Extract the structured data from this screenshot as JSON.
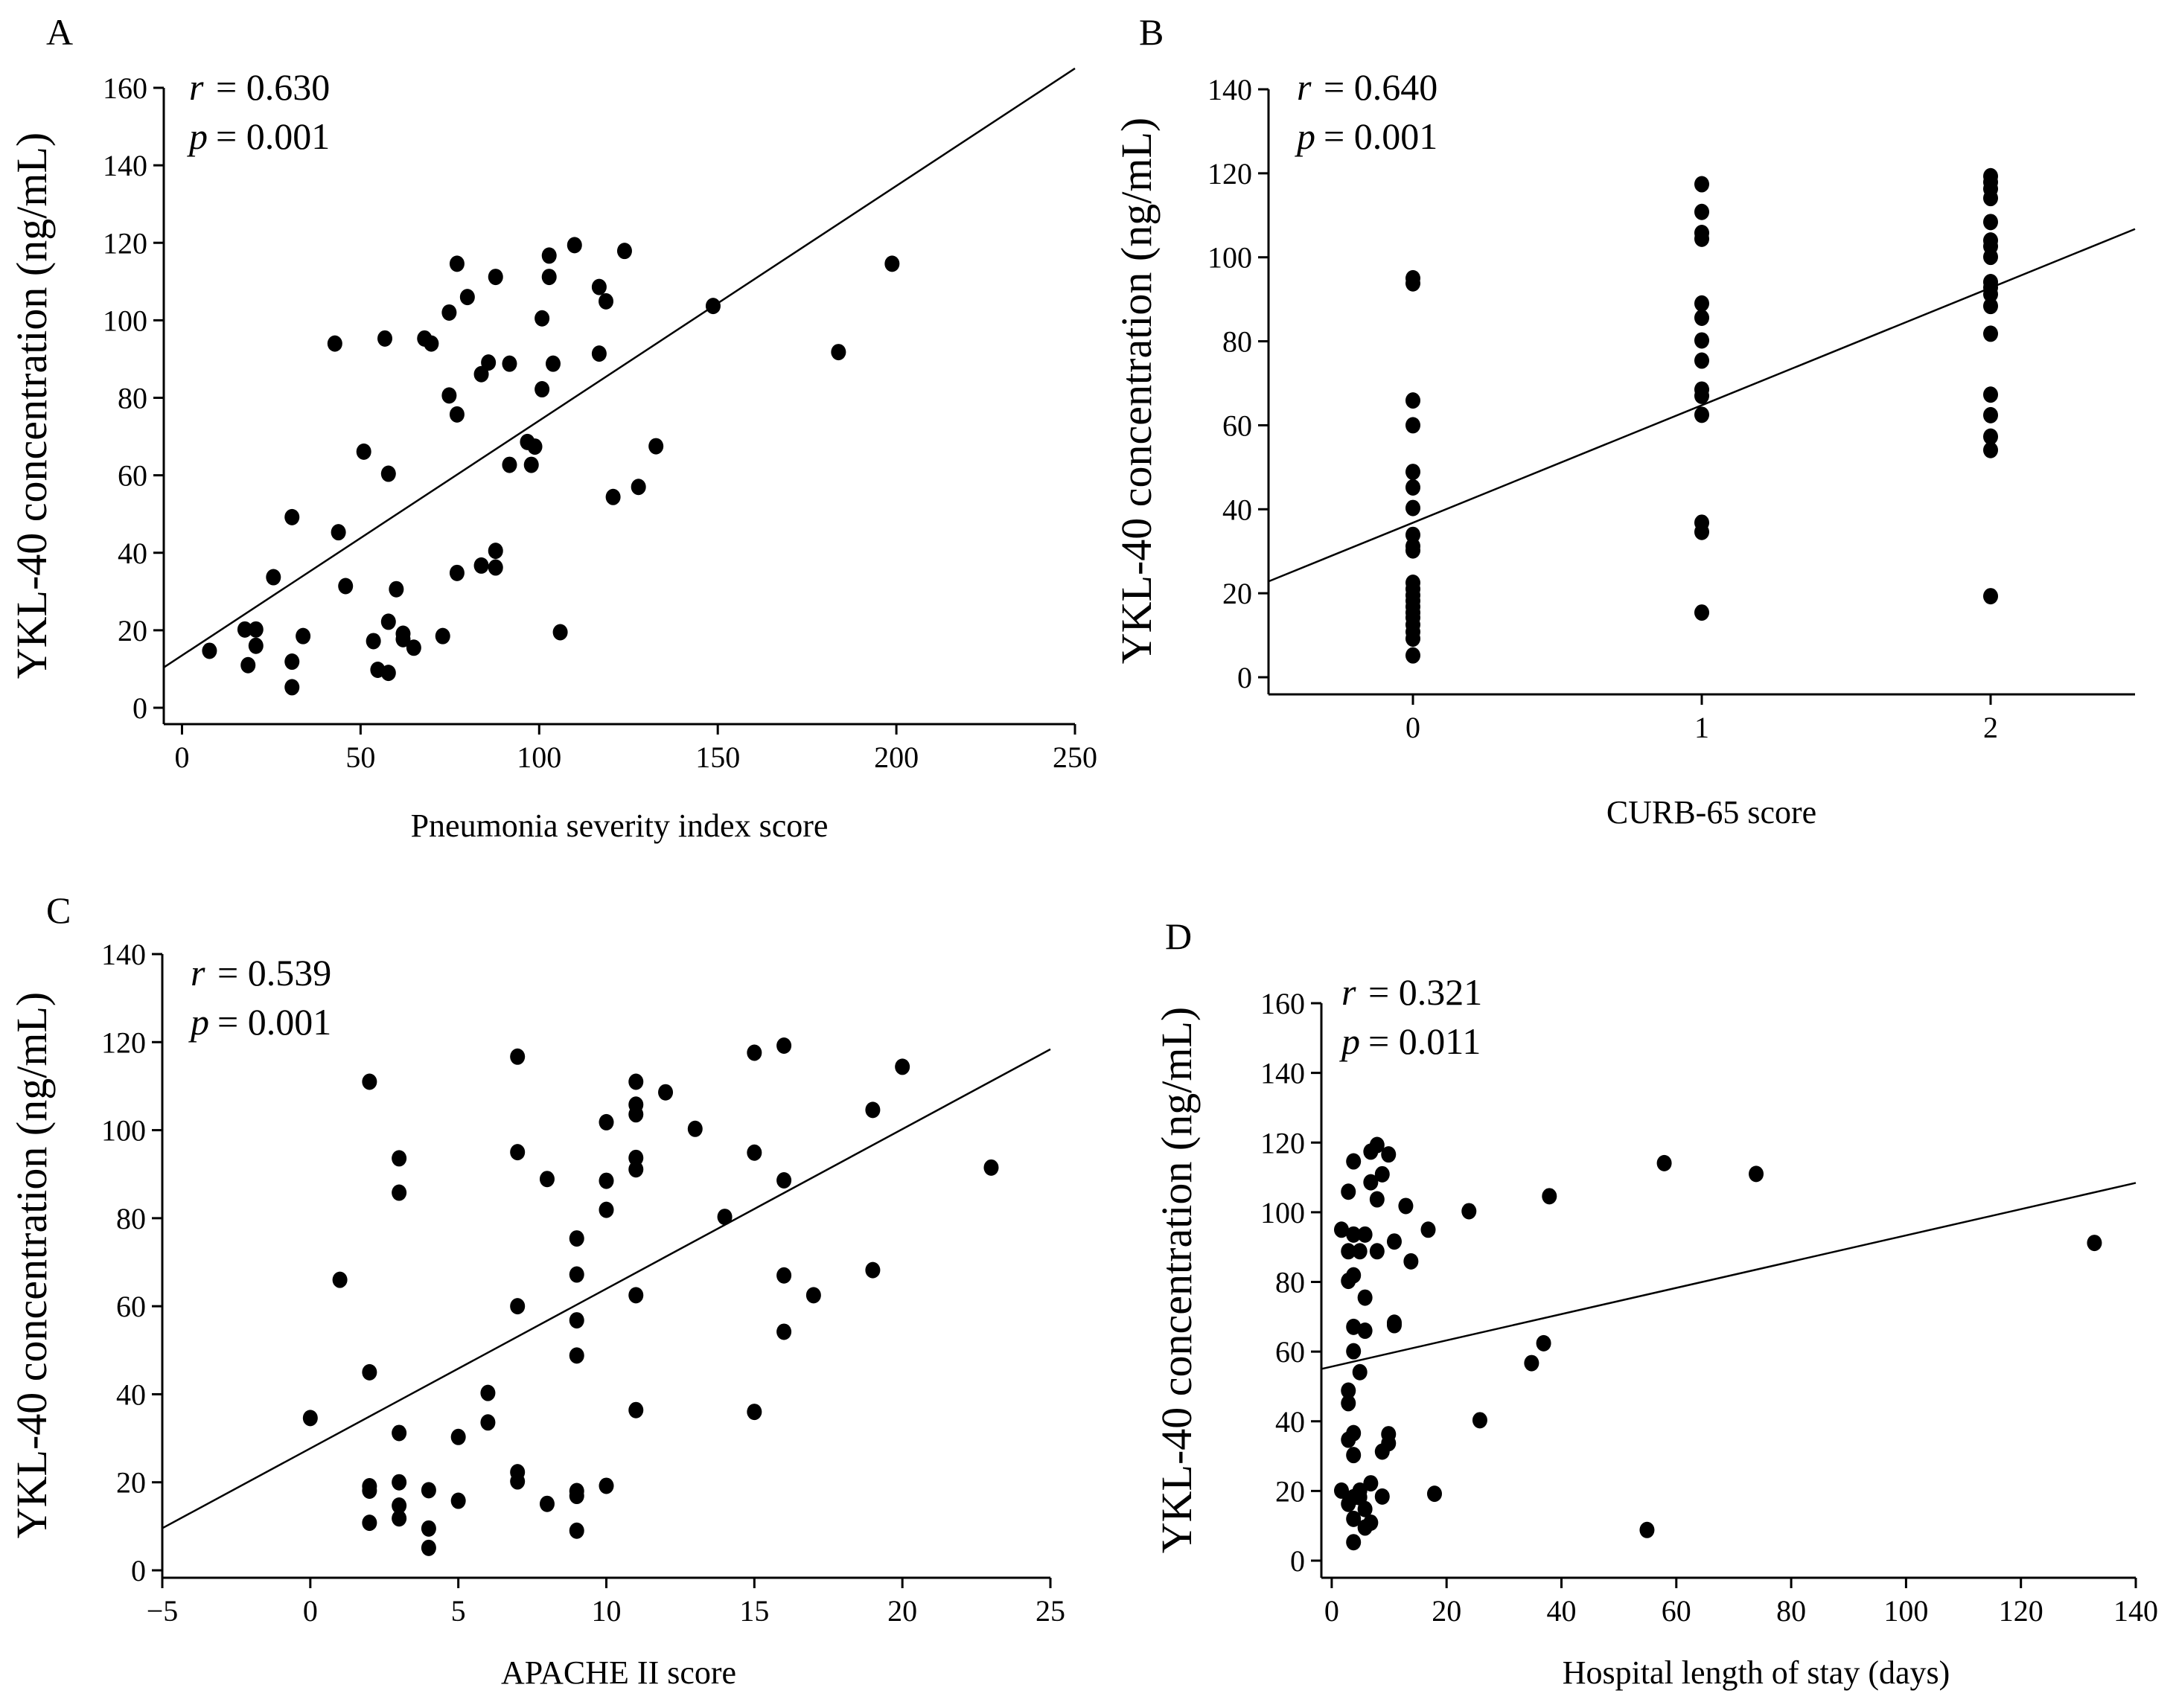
{
  "chart_data": [
    {
      "panel_label": "A",
      "type": "scatter",
      "title": "",
      "xlabel": "Pneumonia severity index score",
      "ylabel": "YKL-40 concentration (ng/mL)",
      "xlim": [
        -5.1,
        250
      ],
      "ylim": [
        0,
        160
      ],
      "xticks": [
        0,
        50,
        100,
        150,
        200,
        250
      ],
      "xtick_labels": [
        "0",
        "50",
        "100",
        "150",
        "200",
        "250"
      ],
      "yticks": [
        0,
        20,
        40,
        60,
        80,
        100,
        120,
        140,
        160
      ],
      "ytick_labels": [
        "0",
        "20",
        "40",
        "60",
        "80",
        "100",
        "120",
        "140",
        "160"
      ],
      "grid": false,
      "stats": {
        "r_symbol": "r",
        "r_text": "= 0.630",
        "p_symbol": "p",
        "p_text": "= 0.001"
      },
      "regression": {
        "slope": 0.606,
        "intercept": 13.5
      },
      "points": [
        [
          7.7,
          14.7
        ],
        [
          17.6,
          20.2
        ],
        [
          20.7,
          20.2
        ],
        [
          20.7,
          16
        ],
        [
          18.5,
          11
        ],
        [
          30.8,
          11.9
        ],
        [
          30.8,
          5.3
        ],
        [
          33.9,
          18.5
        ],
        [
          25.6,
          33.7
        ],
        [
          30.8,
          49.2
        ],
        [
          43.8,
          45.3
        ],
        [
          42.8,
          94
        ],
        [
          45.8,
          31.4
        ],
        [
          50.9,
          66.1
        ],
        [
          53.6,
          17.2
        ],
        [
          54.8,
          9.8
        ],
        [
          57.8,
          9
        ],
        [
          57.8,
          22.2
        ],
        [
          57.8,
          60.4
        ],
        [
          56.8,
          95.3
        ],
        [
          60,
          30.6
        ],
        [
          61.9,
          19.1
        ],
        [
          61.9,
          17.7
        ],
        [
          64.9,
          15.5
        ],
        [
          67.9,
          95.3
        ],
        [
          69.8,
          94
        ],
        [
          73,
          18.5
        ],
        [
          74.8,
          102
        ],
        [
          74.8,
          80.6
        ],
        [
          77,
          114.6
        ],
        [
          77,
          75.7
        ],
        [
          77,
          34.8
        ],
        [
          79.9,
          106
        ],
        [
          83.8,
          86.1
        ],
        [
          83.8,
          36.7
        ],
        [
          85.8,
          89.1
        ],
        [
          87.8,
          111.2
        ],
        [
          87.8,
          40.5
        ],
        [
          87.8,
          36.2
        ],
        [
          91.7,
          88.8
        ],
        [
          91.7,
          62.7
        ],
        [
          96.7,
          68.6
        ],
        [
          97.8,
          62.7
        ],
        [
          98.8,
          67.4
        ],
        [
          100.8,
          100.5
        ],
        [
          100.8,
          82.2
        ],
        [
          102.8,
          116.7
        ],
        [
          102.8,
          111.2
        ],
        [
          103.9,
          88.8
        ],
        [
          105.9,
          19.5
        ],
        [
          109.9,
          119.4
        ],
        [
          116.8,
          108.6
        ],
        [
          116.8,
          91.4
        ],
        [
          118.7,
          104.9
        ],
        [
          123.9,
          117.9
        ],
        [
          120.7,
          54.4
        ],
        [
          127.8,
          57
        ],
        [
          132.7,
          67.5
        ],
        [
          148.7,
          103.7
        ],
        [
          183.8,
          91.8
        ],
        [
          198.8,
          114.6
        ]
      ]
    },
    {
      "panel_label": "B",
      "type": "scatter",
      "title": "",
      "xlabel": "CURB-65 score",
      "ylabel": "YKL-40 concentration (ng/mL)",
      "xlim": [
        -0.5,
        2.5
      ],
      "ylim": [
        0,
        140
      ],
      "xticks": [
        0,
        1,
        2
      ],
      "xtick_labels": [
        "0",
        "1",
        "2"
      ],
      "yticks": [
        0,
        20,
        40,
        60,
        80,
        100,
        120,
        140
      ],
      "ytick_labels": [
        "0",
        "20",
        "40",
        "60",
        "80",
        "100",
        "120",
        "140"
      ],
      "grid": false,
      "stats": {
        "r_symbol": "r",
        "r_text": "= 0.640",
        "p_symbol": "p",
        "p_text": "= 0.001"
      },
      "regression": {
        "slope": 27.97,
        "intercept": 36.8
      },
      "points": [
        [
          0,
          95
        ],
        [
          0,
          93.8
        ],
        [
          0,
          65.9
        ],
        [
          0,
          60
        ],
        [
          0,
          48.9
        ],
        [
          0,
          45.2
        ],
        [
          0,
          40.3
        ],
        [
          0,
          33.9
        ],
        [
          0,
          31.2
        ],
        [
          0,
          30.2
        ],
        [
          0,
          22.5
        ],
        [
          0,
          21
        ],
        [
          0,
          19.5
        ],
        [
          0,
          18.2
        ],
        [
          0,
          16.8
        ],
        [
          0,
          15.4
        ],
        [
          0,
          14.2
        ],
        [
          0,
          12.5
        ],
        [
          0,
          10.8
        ],
        [
          0,
          9.2
        ],
        [
          0,
          5.2
        ],
        [
          1,
          117.4
        ],
        [
          1,
          110.8
        ],
        [
          1,
          105.8
        ],
        [
          1,
          104.4
        ],
        [
          1,
          89
        ],
        [
          1,
          85.6
        ],
        [
          1,
          80.2
        ],
        [
          1,
          75.4
        ],
        [
          1,
          68.5
        ],
        [
          1,
          67
        ],
        [
          1,
          62.5
        ],
        [
          1,
          36.8
        ],
        [
          1,
          34.6
        ],
        [
          1,
          15.4
        ],
        [
          2,
          119.3
        ],
        [
          2,
          117.9
        ],
        [
          2,
          116.3
        ],
        [
          2,
          114.1
        ],
        [
          2,
          108.4
        ],
        [
          2,
          104
        ],
        [
          2,
          102.6
        ],
        [
          2,
          100.1
        ],
        [
          2,
          94.1
        ],
        [
          2,
          92.8
        ],
        [
          2,
          91.2
        ],
        [
          2,
          88.4
        ],
        [
          2,
          81.8
        ],
        [
          2,
          67.3
        ],
        [
          2,
          62.4
        ],
        [
          2,
          57.3
        ],
        [
          2,
          54.1
        ],
        [
          2,
          19.3
        ]
      ]
    },
    {
      "panel_label": "C",
      "type": "scatter",
      "title": "",
      "xlabel": "APACHE II score",
      "ylabel": "YKL-40 concentration (ng/mL)",
      "xlim": [
        -5,
        25
      ],
      "ylim": [
        0,
        140
      ],
      "xticks": [
        -5,
        0,
        5,
        10,
        15,
        20,
        25
      ],
      "xtick_labels": [
        "−5",
        "0",
        "5",
        "10",
        "15",
        "20",
        "25"
      ],
      "yticks": [
        0,
        20,
        40,
        60,
        80,
        100,
        120,
        140
      ],
      "ytick_labels": [
        "0",
        "20",
        "40",
        "60",
        "80",
        "100",
        "120",
        "140"
      ],
      "grid": false,
      "stats": {
        "r_symbol": "r",
        "r_text": "= 0.539",
        "p_symbol": "p",
        "p_text": "= 0.001"
      },
      "regression": {
        "slope": 3.627,
        "intercept": 27.7
      },
      "points": [
        [
          0,
          34.6
        ],
        [
          1,
          66
        ],
        [
          2,
          111
        ],
        [
          2,
          45
        ],
        [
          2,
          19.1
        ],
        [
          2,
          18.1
        ],
        [
          2,
          10.8
        ],
        [
          3,
          93.6
        ],
        [
          3,
          85.8
        ],
        [
          3,
          31.2
        ],
        [
          3,
          20
        ],
        [
          3,
          14.7
        ],
        [
          3,
          11.8
        ],
        [
          4,
          18.2
        ],
        [
          4,
          9.5
        ],
        [
          4,
          5.1
        ],
        [
          5,
          30.3
        ],
        [
          5,
          15.8
        ],
        [
          6,
          40.3
        ],
        [
          6,
          33.6
        ],
        [
          7,
          116.7
        ],
        [
          7,
          95
        ],
        [
          7,
          60
        ],
        [
          7,
          22.3
        ],
        [
          7,
          20.2
        ],
        [
          8,
          88.9
        ],
        [
          8,
          15.1
        ],
        [
          9,
          75.4
        ],
        [
          9,
          67.2
        ],
        [
          9,
          56.8
        ],
        [
          9,
          48.8
        ],
        [
          9,
          18
        ],
        [
          9,
          16.9
        ],
        [
          9,
          9
        ],
        [
          10,
          101.8
        ],
        [
          10,
          88.5
        ],
        [
          10,
          81.9
        ],
        [
          10,
          19.2
        ],
        [
          11,
          111
        ],
        [
          11,
          105.8
        ],
        [
          11,
          103.6
        ],
        [
          11,
          93.7
        ],
        [
          11,
          91.1
        ],
        [
          11,
          62.5
        ],
        [
          11,
          36.4
        ],
        [
          12,
          108.6
        ],
        [
          13,
          100.3
        ],
        [
          14,
          80.3
        ],
        [
          15,
          117.6
        ],
        [
          15,
          94.9
        ],
        [
          15,
          36
        ],
        [
          16,
          119.2
        ],
        [
          16,
          88.6
        ],
        [
          16,
          67
        ],
        [
          16,
          54.2
        ],
        [
          17,
          62.5
        ],
        [
          19,
          104.6
        ],
        [
          19,
          68.2
        ],
        [
          20,
          114.4
        ],
        [
          23,
          91.5
        ]
      ]
    },
    {
      "panel_label": "D",
      "type": "scatter",
      "title": "",
      "xlabel": "Hospital length of stay (days)",
      "ylabel": "YKL-40 concentration (ng/mL)",
      "xlim": [
        -1.8,
        140
      ],
      "ylim": [
        0,
        160
      ],
      "xticks": [
        0,
        20,
        40,
        60,
        80,
        100,
        120,
        140
      ],
      "xtick_labels": [
        "0",
        "20",
        "40",
        "60",
        "80",
        "100",
        "120",
        "140"
      ],
      "yticks": [
        0,
        20,
        40,
        60,
        80,
        100,
        120,
        140,
        160
      ],
      "ytick_labels": [
        "0",
        "20",
        "40",
        "60",
        "80",
        "100",
        "120",
        "140",
        "160"
      ],
      "grid": false,
      "stats": {
        "r_symbol": "r",
        "r_text": "= 0.321",
        "p_symbol": "p",
        "p_text": "= 0.011"
      },
      "regression": {
        "slope": 0.3766,
        "intercept": 55.7
      },
      "points": [
        [
          1.7,
          95
        ],
        [
          2.9,
          105.9
        ],
        [
          2.9,
          88.8
        ],
        [
          2.9,
          80.3
        ],
        [
          3.8,
          114.6
        ],
        [
          3.8,
          93.6
        ],
        [
          3.8,
          81.9
        ],
        [
          5.8,
          93.6
        ],
        [
          4.9,
          88.8
        ],
        [
          7.9,
          88.8
        ],
        [
          5.8,
          75.5
        ],
        [
          3.8,
          67.1
        ],
        [
          5.8,
          66
        ],
        [
          3.8,
          60.1
        ],
        [
          4.9,
          54.1
        ],
        [
          2.9,
          48.8
        ],
        [
          2.9,
          45.2
        ],
        [
          2.9,
          34.7
        ],
        [
          3.8,
          36.6
        ],
        [
          3.8,
          30.3
        ],
        [
          1.7,
          20.1
        ],
        [
          2.9,
          16.3
        ],
        [
          3.8,
          18.2
        ],
        [
          4.9,
          20.1
        ],
        [
          4.9,
          18.2
        ],
        [
          3.8,
          12
        ],
        [
          3.8,
          5.3
        ],
        [
          5.8,
          14.8
        ],
        [
          5.8,
          9.5
        ],
        [
          6.8,
          10.9
        ],
        [
          6.8,
          22.2
        ],
        [
          8.8,
          18.4
        ],
        [
          8.8,
          31.3
        ],
        [
          9.9,
          33.7
        ],
        [
          9.9,
          36.3
        ],
        [
          6.8,
          117.4
        ],
        [
          7.9,
          119.3
        ],
        [
          9.9,
          116.6
        ],
        [
          6.8,
          108.6
        ],
        [
          8.8,
          110.9
        ],
        [
          7.9,
          103.7
        ],
        [
          10.9,
          91.6
        ],
        [
          10.9,
          68.3
        ],
        [
          10.9,
          67.6
        ],
        [
          12.9,
          101.8
        ],
        [
          13.8,
          85.9
        ],
        [
          16.8,
          95
        ],
        [
          17.9,
          19.2
        ],
        [
          23.9,
          100.3
        ],
        [
          25.8,
          40.3
        ],
        [
          34.8,
          56.7
        ],
        [
          36.9,
          62.4
        ],
        [
          37.9,
          104.6
        ],
        [
          54.9,
          8.8
        ],
        [
          57.9,
          114.1
        ],
        [
          73.9,
          111
        ],
        [
          132.8,
          91.2
        ]
      ]
    }
  ]
}
